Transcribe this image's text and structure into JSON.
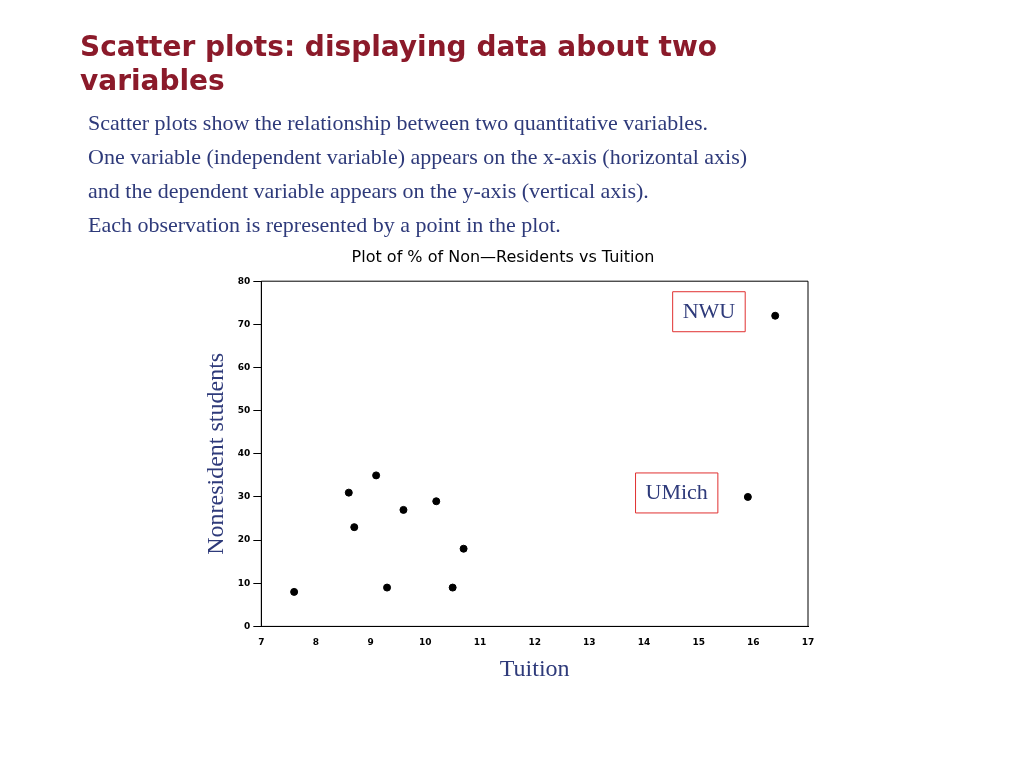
{
  "chart_data": {
    "type": "scatter",
    "title": "Plot of % of Non—Residents vs Tuition",
    "xlabel": "Tuition",
    "ylabel": "Nonresident students",
    "x": [
      7.6,
      8.6,
      8.7,
      9.1,
      9.3,
      9.6,
      10.2,
      10.5,
      10.7,
      15.9,
      16.4
    ],
    "values": [
      8,
      31,
      23,
      35,
      9,
      27,
      29,
      9,
      18,
      30,
      72
    ],
    "color": "#000000",
    "marker": "circle",
    "xlim": [
      7,
      17
    ],
    "xticks": [
      7,
      8,
      9,
      10,
      11,
      12,
      13,
      14,
      15,
      16,
      17
    ],
    "ylim": [
      0,
      80
    ],
    "yticks": [
      0,
      10,
      20,
      30,
      40,
      50,
      60,
      70,
      80
    ],
    "grid": false,
    "annotations": [
      "Scatter plots: displaying data about two variables",
      "Scatter plots show the relationship between two quantitative variables.",
      "One variable (independent variable) appears on the x-axis (horizontal axis)",
      "and the dependent variable appears on the y-axis (vertical axis).",
      "Each observation is represented by a point in the plot.",
      {
        "text": "NWU",
        "x": 16.4,
        "y": 72
      },
      {
        "text": "UMich",
        "x": 15.9,
        "y": 30
      }
    ]
  }
}
